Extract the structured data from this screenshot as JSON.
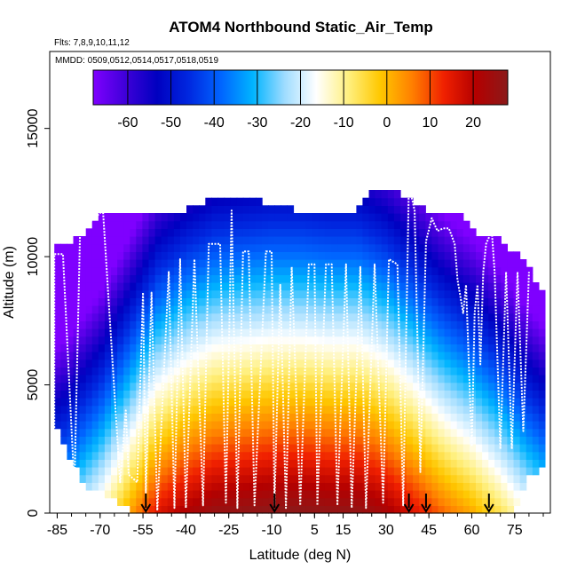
{
  "chart_data": {
    "type": "heatmap",
    "title": "ATOM4 Northbound Static_Air_Temp",
    "subtitle_flights": "Flts: 7,8,9,10,11,12",
    "subtitle_dates": "MMDD: 0509,0512,0514,0517,0518,0519",
    "xlabel": "Latitude (deg N)",
    "ylabel": "Altitude (m)",
    "xlim": [
      -87,
      85
    ],
    "ylim": [
      0,
      18000
    ],
    "x_ticks": [
      -85,
      -70,
      -55,
      -40,
      -25,
      -10,
      5,
      15,
      30,
      45,
      60,
      75
    ],
    "y_ticks": [
      0,
      5000,
      10000,
      15000
    ],
    "colorbar": {
      "min": -68,
      "max": 28,
      "ticks": [
        -60,
        -50,
        -40,
        -30,
        -20,
        -10,
        0,
        10,
        20
      ],
      "colors": [
        "#7F00FF",
        "#3F00D9",
        "#0000C0",
        "#0028E0",
        "#0064FF",
        "#00B4FF",
        "#9FDCFF",
        "#FFFFFF",
        "#FFF080",
        "#FFC800",
        "#FF8000",
        "#F02000",
        "#B40000",
        "#8B1A1A"
      ]
    },
    "profile_markers_lat": [
      -54,
      -9,
      38,
      44,
      66
    ],
    "temperature_model": {
      "surface_temp_by_lat": [
        [
          -87,
          -27
        ],
        [
          -80,
          -22
        ],
        [
          -70,
          -12
        ],
        [
          -60,
          2
        ],
        [
          -50,
          16
        ],
        [
          -40,
          22
        ],
        [
          -30,
          26
        ],
        [
          -20,
          27
        ],
        [
          -10,
          28
        ],
        [
          0,
          28
        ],
        [
          10,
          27
        ],
        [
          20,
          27
        ],
        [
          30,
          23
        ],
        [
          40,
          16
        ],
        [
          50,
          8
        ],
        [
          60,
          2
        ],
        [
          70,
          -6
        ],
        [
          80,
          -16
        ],
        [
          85,
          -20
        ]
      ],
      "lapse_rate_per_km": -6.5,
      "coverage_top_by_lat": [
        [
          -85,
          10500
        ],
        [
          -80,
          10500
        ],
        [
          -75,
          11000
        ],
        [
          -70,
          11800
        ],
        [
          -60,
          11800
        ],
        [
          -40,
          11800
        ],
        [
          -30,
          12300
        ],
        [
          -20,
          12300
        ],
        [
          0,
          11800
        ],
        [
          20,
          11800
        ],
        [
          25,
          12500
        ],
        [
          35,
          12500
        ],
        [
          40,
          12100
        ],
        [
          45,
          11800
        ],
        [
          55,
          11700
        ],
        [
          60,
          11000
        ],
        [
          70,
          10800
        ],
        [
          80,
          9500
        ],
        [
          85,
          8500
        ]
      ],
      "coverage_bottom_by_lat": [
        [
          -85,
          3200
        ],
        [
          -80,
          2000
        ],
        [
          -75,
          1000
        ],
        [
          -65,
          600
        ],
        [
          -57,
          0
        ],
        [
          75,
          0
        ],
        [
          80,
          1500
        ],
        [
          85,
          1800
        ]
      ]
    },
    "flight_track": [
      [
        -86,
        3200
      ],
      [
        -86,
        10100
      ],
      [
        -83,
        10100
      ],
      [
        -79,
        1000
      ],
      [
        -77,
        11000
      ],
      [
        -69,
        11800
      ],
      [
        -63,
        1200
      ],
      [
        -61,
        4000
      ],
      [
        -60,
        1500
      ],
      [
        -57,
        1200
      ],
      [
        -55,
        8600
      ],
      [
        -54,
        800
      ],
      [
        -52,
        8600
      ],
      [
        -50,
        100
      ],
      [
        -46,
        9400
      ],
      [
        -44,
        200
      ],
      [
        -42,
        9900
      ],
      [
        -40,
        200
      ],
      [
        -37,
        9900
      ],
      [
        -34,
        300
      ],
      [
        -32,
        10500
      ],
      [
        -28,
        10500
      ],
      [
        -26,
        400
      ],
      [
        -24,
        11800
      ],
      [
        -22,
        200
      ],
      [
        -20,
        10200
      ],
      [
        -18,
        10200
      ],
      [
        -16,
        300
      ],
      [
        -12,
        10200
      ],
      [
        -10,
        10200
      ],
      [
        -9,
        300
      ],
      [
        -7,
        8900
      ],
      [
        -5,
        200
      ],
      [
        -3,
        9600
      ],
      [
        0,
        300
      ],
      [
        3,
        9700
      ],
      [
        5,
        9700
      ],
      [
        6,
        300
      ],
      [
        9,
        9700
      ],
      [
        11,
        9700
      ],
      [
        13,
        300
      ],
      [
        16,
        9700
      ],
      [
        18,
        200
      ],
      [
        21,
        9600
      ],
      [
        23,
        200
      ],
      [
        26,
        9700
      ],
      [
        29,
        400
      ],
      [
        31,
        9900
      ],
      [
        34,
        9700
      ],
      [
        36,
        300
      ],
      [
        38,
        12800
      ],
      [
        40,
        11800
      ],
      [
        42,
        1600
      ],
      [
        44,
        10600
      ],
      [
        46,
        11500
      ],
      [
        48,
        11000
      ],
      [
        50,
        11100
      ],
      [
        52,
        11100
      ],
      [
        54,
        10500
      ],
      [
        55,
        9100
      ],
      [
        57,
        7800
      ],
      [
        58,
        8900
      ],
      [
        60,
        2600
      ],
      [
        61,
        7800
      ],
      [
        62,
        8900
      ],
      [
        63,
        5800
      ],
      [
        64,
        9400
      ],
      [
        65,
        10500
      ],
      [
        67,
        11000
      ],
      [
        68,
        9400
      ],
      [
        70,
        2500
      ],
      [
        72,
        9400
      ],
      [
        74,
        2500
      ],
      [
        76,
        9400
      ],
      [
        78,
        3200
      ],
      [
        80,
        9400
      ]
    ]
  }
}
